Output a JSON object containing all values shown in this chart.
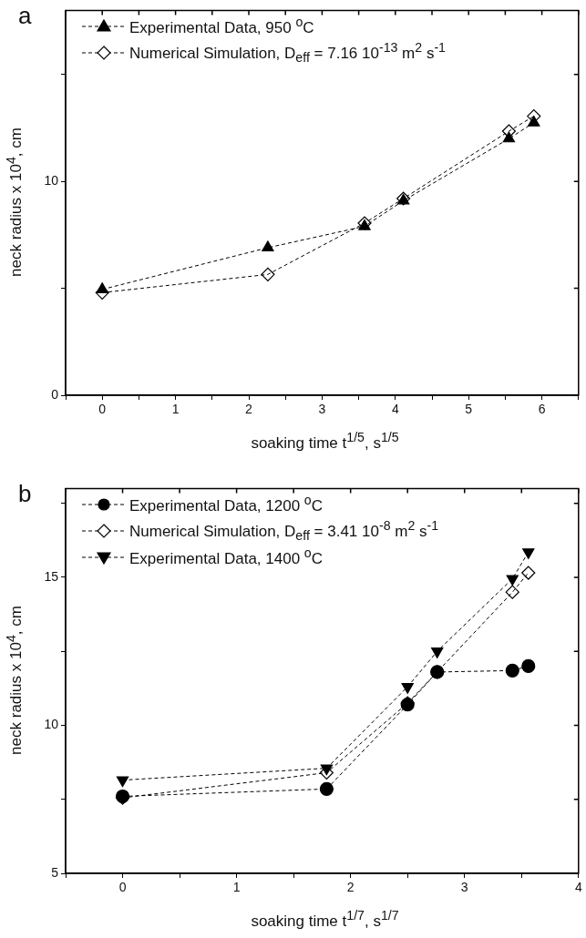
{
  "chart_data": [
    {
      "type": "line",
      "annotations": [
        "a"
      ],
      "xlabel": "soaking time t$^{1/5}$, s$^{1/5}$",
      "ylabel": "neck radius x 10$^{4}$, cm",
      "xlim": [
        -0.5,
        6.5
      ],
      "xticks": [
        {
          "value": -0.5,
          "label": null
        },
        0,
        {
          "value": 0.5,
          "label": null
        },
        1,
        {
          "value": 1.5,
          "label": null
        },
        2,
        {
          "value": 2.5,
          "label": null
        },
        3,
        {
          "value": 3.5,
          "label": null
        },
        4,
        {
          "value": 4.5,
          "label": null
        },
        5,
        {
          "value": 5.5,
          "label": null
        },
        6,
        {
          "value": 6.5,
          "label": null
        }
      ],
      "ylim": [
        0,
        18
      ],
      "yticks": [
        0,
        {
          "value": 5,
          "label": null
        },
        10,
        {
          "value": 15,
          "label": null
        }
      ],
      "grid": false,
      "legend": "top left",
      "line_style": "dashed",
      "series": [
        {
          "name": "Experimental Data, 950 $^{o}$C",
          "color": "#000000",
          "marker": "triangle",
          "x": [
            0,
            2.26,
            3.58,
            4.11,
            5.55,
            5.89
          ],
          "values": [
            4.95,
            6.9,
            7.9,
            9.1,
            12.0,
            12.75
          ]
        },
        {
          "name": "Numerical Simulation, D$_{eff}$ = 7.16 10$^{-13}$ m$^{2}$ s$^{-1}$",
          "color": "#000000",
          "marker": "diamond",
          "x": [
            0,
            2.26,
            3.58,
            4.11,
            5.55,
            5.89
          ],
          "values": [
            4.8,
            5.65,
            8.05,
            9.2,
            12.35,
            13.05
          ]
        }
      ]
    },
    {
      "type": "line",
      "annotations": [
        "b"
      ],
      "xlabel": "soaking time t$^{1/7}$, s$^{1/7}$",
      "ylabel": "neck radius x 10$^{4}$, cm",
      "xlim": [
        -0.5,
        4
      ],
      "xticks": [
        {
          "value": -0.5,
          "label": null
        },
        0,
        {
          "value": 0.5,
          "label": null
        },
        1,
        {
          "value": 1.5,
          "label": null
        },
        2,
        {
          "value": 2.5,
          "label": null
        },
        3,
        {
          "value": 3.5,
          "label": null
        },
        4
      ],
      "ylim": [
        5,
        18
      ],
      "yticks": [
        5,
        {
          "value": 7.5,
          "label": null
        },
        10,
        {
          "value": 12.5,
          "label": null
        },
        15,
        {
          "value": 17.5,
          "label": null
        }
      ],
      "grid": false,
      "legend": "top left",
      "line_style": "dashed",
      "series": [
        {
          "name": "Experimental Data, 1200 $^{o}$C",
          "color": "#000000",
          "marker": "circle",
          "x": [
            0,
            1.79,
            2.5,
            2.76,
            3.42,
            3.56
          ],
          "values": [
            7.6,
            7.85,
            10.7,
            11.8,
            11.85,
            12.0
          ]
        },
        {
          "name": "Numerical Simulation, D$_{eff}$ = 3.41 10$^{-8}$ m$^{2}$ s$^{-1}$",
          "color": "#000000",
          "marker": "diamond",
          "x": [
            0,
            1.79,
            2.5,
            2.76,
            3.42,
            3.56
          ],
          "values": [
            7.55,
            8.4,
            10.75,
            11.8,
            14.5,
            15.15
          ]
        },
        {
          "name": "Experimental Data, 1400 $^{o}$C",
          "color": "#000000",
          "marker": "triangle-down",
          "x": [
            0,
            1.79,
            2.5,
            2.76,
            3.42,
            3.56
          ],
          "values": [
            8.15,
            8.55,
            11.3,
            12.5,
            14.95,
            15.85
          ]
        }
      ]
    }
  ]
}
